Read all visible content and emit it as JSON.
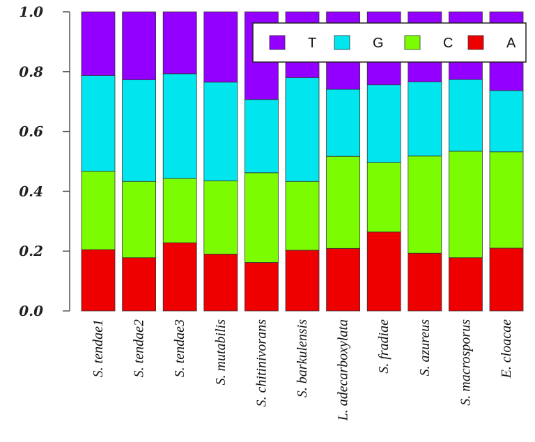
{
  "chart_data": {
    "type": "bar",
    "stacked": true,
    "categories": [
      "S. tendae1",
      "S. tendae2",
      "S. tendae3",
      "S. mutabilis",
      "S. chitinivorans",
      "S. barkulensis",
      "L. adecarboxylata",
      "S. fradiae",
      "S. azureus",
      "S. macrosporus",
      "E. cloacae"
    ],
    "series": [
      {
        "name": "A",
        "color": "#ee0000",
        "values": [
          0.205,
          0.178,
          0.228,
          0.19,
          0.162,
          0.203,
          0.209,
          0.264,
          0.193,
          0.178,
          0.21
        ]
      },
      {
        "name": "C",
        "color": "#7cfc00",
        "values": [
          0.262,
          0.255,
          0.215,
          0.245,
          0.3,
          0.23,
          0.308,
          0.232,
          0.325,
          0.356,
          0.322
        ]
      },
      {
        "name": "G",
        "color": "#00e5ee",
        "values": [
          0.32,
          0.34,
          0.35,
          0.33,
          0.245,
          0.347,
          0.224,
          0.26,
          0.248,
          0.24,
          0.205
        ]
      },
      {
        "name": "T",
        "color": "#9400ff",
        "values": [
          0.213,
          0.227,
          0.207,
          0.235,
          0.293,
          0.22,
          0.259,
          0.244,
          0.234,
          0.226,
          0.263
        ]
      }
    ],
    "ylim": [
      0,
      1.0
    ],
    "yticks": [
      "0.0",
      "0.2",
      "0.4",
      "0.6",
      "0.8",
      "1.0"
    ],
    "legend": {
      "placement": "top-right",
      "order": [
        "T",
        "G",
        "C",
        "A"
      ]
    },
    "grid": false
  }
}
